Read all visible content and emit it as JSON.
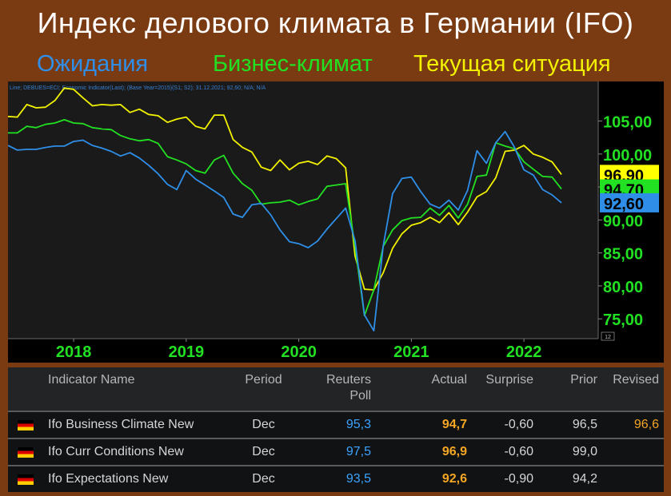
{
  "header": {
    "title": "Индекс делового климата в Германии (IFO)",
    "legend": [
      {
        "label": "Ожидания",
        "color": "#2f8fe8"
      },
      {
        "label": "Бизнес-климат",
        "color": "#22e022"
      },
      {
        "label": "Текущая ситуация",
        "color": "#f2f200"
      }
    ]
  },
  "chart_data": {
    "type": "line",
    "info_line": "Line; DEBUES=ECI; Economic Indicator(Last); (Base Year=2015)(S1; S2); 31.12.2021; 92,60; N/A; N/A",
    "x_start": "2017-06",
    "x_end": "2021-12",
    "x_tick_labels": [
      "2018",
      "2019",
      "2020",
      "2021",
      "2022"
    ],
    "y_tick_labels": [
      "75,00",
      "80,00",
      "85,00",
      "90,00",
      "95,00",
      "100,00",
      "105,00"
    ],
    "ylim": [
      72,
      111
    ],
    "grid": false,
    "last_value_tags": [
      {
        "label": "96,90",
        "value": 96.9,
        "color": "#ffff00"
      },
      {
        "label": "94,70",
        "value": 94.7,
        "color": "#22e022"
      },
      {
        "label": "92,60",
        "value": 92.6,
        "color": "#2f8fe8"
      }
    ],
    "corner_badge": "12",
    "series": [
      {
        "color": "#f2f200",
        "values": [
          105.7,
          105.6,
          107.5,
          107.0,
          107.1,
          108.1,
          110.0,
          109.8,
          108.5,
          107.3,
          107.5,
          107.4,
          107.5,
          106.3,
          106.8,
          106.0,
          105.8,
          104.8,
          105.3,
          105.6,
          104.2,
          103.8,
          105.9,
          105.9,
          102.2,
          101.0,
          100.3,
          98.0,
          97.5,
          99.1,
          97.6,
          98.6,
          98.9,
          98.4,
          99.7,
          99.3,
          97.9,
          84.5,
          79.5,
          79.4,
          82.0,
          85.7,
          87.9,
          89.2,
          89.6,
          90.4,
          89.6,
          91.1,
          89.3,
          91.2,
          93.5,
          94.3,
          96.4,
          100.4,
          100.6,
          101.3,
          100.0,
          99.5,
          98.8,
          96.9
        ]
      },
      {
        "color": "#22e022",
        "values": [
          103.2,
          103.2,
          104.2,
          104.0,
          104.5,
          104.7,
          105.2,
          104.7,
          104.6,
          104.0,
          103.8,
          103.7,
          102.8,
          102.3,
          102.0,
          102.2,
          101.6,
          99.6,
          99.1,
          98.5,
          97.5,
          97.1,
          99.1,
          99.8,
          97.1,
          95.5,
          94.5,
          92.4,
          92.6,
          92.7,
          93.0,
          92.3,
          92.8,
          93.2,
          95.1,
          95.3,
          95.5,
          85.9,
          75.5,
          79.4,
          86.0,
          88.5,
          89.9,
          90.3,
          90.4,
          91.8,
          90.7,
          92.2,
          90.3,
          92.4,
          96.6,
          96.8,
          101.7,
          101.2,
          100.8,
          98.8,
          97.7,
          96.6,
          96.5,
          94.7
        ]
      },
      {
        "color": "#2f8fe8",
        "values": [
          101.3,
          100.6,
          100.7,
          100.7,
          101.0,
          101.2,
          101.2,
          101.9,
          102.1,
          101.3,
          100.9,
          100.4,
          99.7,
          100.2,
          99.4,
          98.3,
          97.0,
          95.4,
          94.6,
          97.5,
          96.2,
          95.3,
          94.4,
          93.4,
          90.9,
          90.4,
          92.3,
          92.5,
          90.8,
          88.5,
          86.7,
          86.4,
          85.8,
          86.8,
          88.6,
          90.2,
          91.8,
          86.8,
          75.6,
          73.2,
          86.1,
          94.0,
          96.3,
          96.5,
          94.3,
          92.4,
          91.8,
          93.0,
          91.5,
          94.5,
          100.5,
          98.6,
          101.7,
          103.4,
          101.0,
          97.6,
          96.8,
          94.6,
          93.8,
          92.6
        ]
      }
    ]
  },
  "table": {
    "headers": {
      "name": "Indicator Name",
      "period": "Period",
      "poll_line1": "Reuters",
      "poll_line2": "Poll",
      "actual": "Actual",
      "surprise": "Surprise",
      "prior": "Prior",
      "revised": "Revised"
    },
    "rows": [
      {
        "flag": "germany-flag",
        "name": "Ifo Business Climate New",
        "period": "Dec",
        "poll": "95,3",
        "actual": "94,7",
        "surprise": "-0,60",
        "prior": "96,5",
        "revised": "96,6"
      },
      {
        "flag": "germany-flag",
        "name": "Ifo Curr Conditions New",
        "period": "Dec",
        "poll": "97,5",
        "actual": "96,9",
        "surprise": "-0,60",
        "prior": "99,0",
        "revised": ""
      },
      {
        "flag": "germany-flag",
        "name": "Ifo Expectations New",
        "period": "Dec",
        "poll": "93,5",
        "actual": "92,6",
        "surprise": "-0,90",
        "prior": "94,2",
        "revised": ""
      }
    ]
  }
}
